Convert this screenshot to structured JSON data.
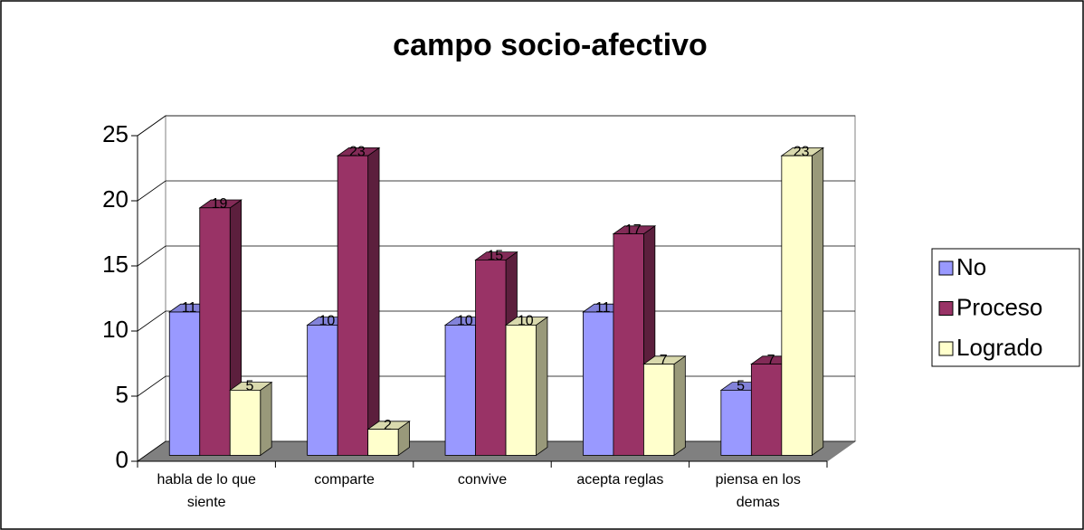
{
  "chart_data": {
    "type": "bar3d",
    "title": "campo socio-afectivo",
    "categories": [
      "habla de lo que siente",
      "comparte",
      "convive",
      "acepta reglas",
      "piensa en los demas"
    ],
    "series": [
      {
        "name": "No",
        "color": "#9999ff",
        "values": [
          11,
          10,
          10,
          11,
          5
        ]
      },
      {
        "name": "Proceso",
        "color": "#993366",
        "values": [
          19,
          23,
          15,
          17,
          7
        ]
      },
      {
        "name": "Logrado",
        "color": "#ffffcc",
        "values": [
          5,
          2,
          10,
          7,
          23
        ]
      }
    ],
    "ylim": [
      0,
      25
    ],
    "yticks": [
      0,
      5,
      10,
      15,
      20,
      25
    ],
    "grid": true,
    "legend": "right"
  }
}
